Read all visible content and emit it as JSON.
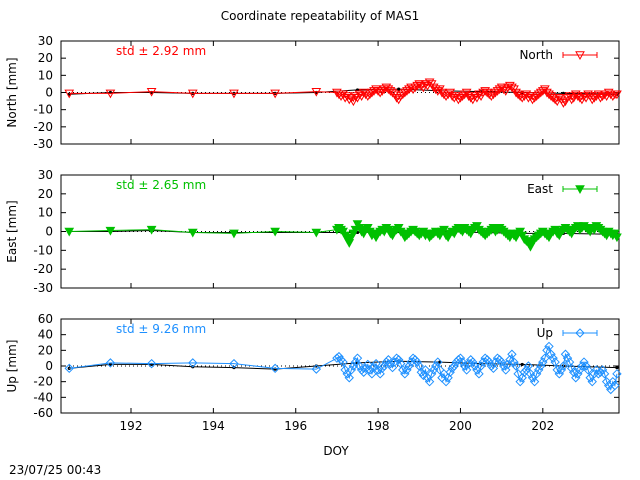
{
  "title": "Coordinate repeatability of MAS1",
  "timestamp": "23/07/25 00:43",
  "xlabel": "DOY",
  "xlim": [
    190.3,
    203.85
  ],
  "xticks": [
    192,
    194,
    196,
    198,
    200,
    202
  ],
  "chart_data": [
    {
      "type": "line",
      "ylabel": "North [mm]",
      "ylim": [
        -30,
        30
      ],
      "yticks": [
        -30,
        -20,
        -10,
        0,
        10,
        20,
        30
      ],
      "std_label": "std ± 2.92 mm",
      "std_color": "#ff0000",
      "legend": "North",
      "legend_position": "top-right",
      "color": "#ff0000",
      "marker": "triangle-down-open",
      "trend": {
        "x": [
          190.5,
          191.5,
          192.5,
          193.5,
          194.5,
          195.5,
          196.5,
          197.5,
          198.5,
          199.5,
          200.5,
          201.5,
          202.5,
          203.8
        ],
        "y": [
          -1,
          0,
          0,
          -0.5,
          -0.5,
          -0.5,
          0,
          1.5,
          2,
          1,
          0.5,
          0,
          -0.5,
          -1
        ]
      },
      "x": [
        190.5,
        191.5,
        192.5,
        193.5,
        194.5,
        195.5,
        196.5,
        197.0,
        197.05,
        197.1,
        197.15,
        197.2,
        197.25,
        197.3,
        197.35,
        197.4,
        197.45,
        197.5,
        197.55,
        197.6,
        197.65,
        197.7,
        197.75,
        197.8,
        197.85,
        197.9,
        197.95,
        198.0,
        198.05,
        198.1,
        198.15,
        198.2,
        198.25,
        198.3,
        198.35,
        198.4,
        198.45,
        198.5,
        198.55,
        198.6,
        198.65,
        198.7,
        198.75,
        198.8,
        198.85,
        198.9,
        198.95,
        199.0,
        199.05,
        199.1,
        199.15,
        199.2,
        199.25,
        199.3,
        199.35,
        199.4,
        199.45,
        199.5,
        199.55,
        199.6,
        199.65,
        199.7,
        199.75,
        199.8,
        199.85,
        199.9,
        199.95,
        200.0,
        200.05,
        200.1,
        200.15,
        200.2,
        200.25,
        200.3,
        200.35,
        200.4,
        200.45,
        200.5,
        200.55,
        200.6,
        200.65,
        200.7,
        200.75,
        200.8,
        200.85,
        200.9,
        200.95,
        201.0,
        201.05,
        201.1,
        201.15,
        201.2,
        201.25,
        201.3,
        201.35,
        201.4,
        201.45,
        201.5,
        201.55,
        201.6,
        201.65,
        201.7,
        201.75,
        201.8,
        201.85,
        201.9,
        201.95,
        202.0,
        202.05,
        202.1,
        202.15,
        202.2,
        202.25,
        202.3,
        202.35,
        202.4,
        202.45,
        202.5,
        202.55,
        202.6,
        202.65,
        202.7,
        202.75,
        202.8,
        202.85,
        202.9,
        202.95,
        203.0,
        203.05,
        203.1,
        203.15,
        203.2,
        203.25,
        203.3,
        203.35,
        203.4,
        203.45,
        203.5,
        203.55,
        203.6,
        203.65,
        203.7,
        203.75,
        203.8
      ],
      "y": [
        -0.5,
        -0.5,
        0.5,
        -0.5,
        -0.5,
        -0.5,
        0.5,
        0,
        -1,
        -2,
        -1,
        -3,
        -2,
        -4,
        -3,
        -5,
        -2,
        -3,
        -1,
        -2,
        0,
        -1,
        -2,
        -1,
        0,
        1,
        2,
        1,
        0,
        1,
        2,
        3,
        2,
        1,
        0,
        -1,
        -3,
        -4,
        -2,
        -1,
        0,
        1,
        2,
        3,
        2,
        3,
        4,
        5,
        4,
        3,
        5,
        4,
        6,
        5,
        3,
        2,
        1,
        2,
        0,
        -1,
        -2,
        -1,
        0,
        -2,
        -3,
        -2,
        -4,
        -3,
        -2,
        -1,
        0,
        -2,
        -3,
        -4,
        -2,
        -3,
        -1,
        -2,
        0,
        1,
        0,
        -1,
        -2,
        -1,
        0,
        1,
        2,
        3,
        2,
        1,
        3,
        4,
        3,
        2,
        0,
        -1,
        -2,
        -3,
        -2,
        -1,
        -3,
        -2,
        -4,
        -3,
        -2,
        -1,
        0,
        1,
        2,
        0,
        -1,
        -2,
        -3,
        -4,
        -5,
        -3,
        -4,
        -6,
        -5,
        -3,
        -2,
        -4,
        -3,
        -1,
        -2,
        -3,
        -4,
        -2,
        -3,
        -1,
        -2,
        -4,
        -3,
        -2,
        -1,
        -3,
        -2,
        -1,
        -2,
        0,
        -1,
        -2,
        -1,
        -1
      ]
    },
    {
      "type": "line",
      "ylabel": "East [mm]",
      "ylim": [
        -30,
        30
      ],
      "yticks": [
        -30,
        -20,
        -10,
        0,
        10,
        20,
        30
      ],
      "std_label": "std ± 2.65 mm",
      "std_color": "#00c000",
      "legend": "East",
      "legend_position": "top-right",
      "color": "#00c000",
      "marker": "triangle-down-filled",
      "trend": {
        "x": [
          190.5,
          191.5,
          192.5,
          193.5,
          194.5,
          195.5,
          196.5,
          197.5,
          198.5,
          199.5,
          200.5,
          201.5,
          202.5,
          203.8
        ],
        "y": [
          0,
          0,
          0.5,
          -0.5,
          -0.5,
          -0.5,
          -0.5,
          -0.5,
          0,
          0,
          -0.5,
          -1,
          -1,
          -1.5
        ]
      },
      "x": [
        190.5,
        191.5,
        192.5,
        193.5,
        194.5,
        195.5,
        196.5,
        197.0,
        197.05,
        197.1,
        197.15,
        197.2,
        197.25,
        197.3,
        197.35,
        197.4,
        197.45,
        197.5,
        197.55,
        197.6,
        197.65,
        197.7,
        197.75,
        197.8,
        197.85,
        197.9,
        197.95,
        198.0,
        198.05,
        198.1,
        198.15,
        198.2,
        198.25,
        198.3,
        198.35,
        198.4,
        198.45,
        198.5,
        198.55,
        198.6,
        198.65,
        198.7,
        198.75,
        198.8,
        198.85,
        198.9,
        198.95,
        199.0,
        199.05,
        199.1,
        199.15,
        199.2,
        199.25,
        199.3,
        199.35,
        199.4,
        199.45,
        199.5,
        199.55,
        199.6,
        199.65,
        199.7,
        199.75,
        199.8,
        199.85,
        199.9,
        199.95,
        200.0,
        200.05,
        200.1,
        200.15,
        200.2,
        200.25,
        200.3,
        200.35,
        200.4,
        200.45,
        200.5,
        200.55,
        200.6,
        200.65,
        200.7,
        200.75,
        200.8,
        200.85,
        200.9,
        200.95,
        201.0,
        201.05,
        201.1,
        201.15,
        201.2,
        201.25,
        201.3,
        201.35,
        201.4,
        201.45,
        201.5,
        201.55,
        201.6,
        201.65,
        201.7,
        201.75,
        201.8,
        201.85,
        201.9,
        201.95,
        202.0,
        202.05,
        202.1,
        202.15,
        202.2,
        202.25,
        202.3,
        202.35,
        202.4,
        202.45,
        202.5,
        202.55,
        202.6,
        202.65,
        202.7,
        202.75,
        202.8,
        202.85,
        202.9,
        202.95,
        203.0,
        203.05,
        203.1,
        203.15,
        203.2,
        203.25,
        203.3,
        203.35,
        203.4,
        203.45,
        203.5,
        203.55,
        203.6,
        203.65,
        203.7,
        203.75,
        203.8
      ],
      "y": [
        0,
        0.5,
        1,
        -0.5,
        -1,
        0,
        -0.5,
        1,
        2,
        1,
        0,
        -2,
        -4,
        -6,
        -3,
        -1,
        1,
        4,
        2,
        0,
        -1,
        1,
        2,
        0,
        -2,
        -1,
        -3,
        -1,
        0,
        1,
        0,
        2,
        1,
        -1,
        -2,
        0,
        1,
        2,
        0,
        -1,
        -3,
        -2,
        -1,
        0,
        1,
        0,
        -1,
        -2,
        -1,
        0,
        -2,
        -1,
        -3,
        -2,
        -1,
        0,
        -1,
        -2,
        0,
        1,
        -2,
        -3,
        -1,
        0,
        -1,
        1,
        2,
        1,
        0,
        2,
        1,
        0,
        -1,
        1,
        2,
        3,
        1,
        0,
        -1,
        -2,
        -1,
        0,
        1,
        2,
        0,
        1,
        2,
        1,
        0,
        -1,
        -2,
        -3,
        -1,
        -2,
        -3,
        -1,
        0,
        -2,
        -4,
        -5,
        -6,
        -8,
        -5,
        -4,
        -3,
        -2,
        -1,
        0,
        -1,
        -2,
        -3,
        -1,
        0,
        1,
        -1,
        -2,
        0,
        1,
        2,
        1,
        0,
        -1,
        1,
        2,
        3,
        1,
        2,
        3,
        2,
        1,
        0,
        2,
        1,
        3,
        2,
        1,
        0,
        -1,
        -2,
        0,
        -1,
        -2,
        -1,
        -3
      ]
    },
    {
      "type": "line",
      "ylabel": "Up [mm]",
      "ylim": [
        -60,
        60
      ],
      "yticks": [
        -60,
        -40,
        -20,
        0,
        20,
        40,
        60
      ],
      "std_label": "std ± 9.26 mm",
      "std_color": "#1e90ff",
      "legend": "Up",
      "legend_position": "top-right",
      "color": "#1e90ff",
      "marker": "diamond-open",
      "trend": {
        "x": [
          190.5,
          191.5,
          192.5,
          193.5,
          194.5,
          195.5,
          196.5,
          197.5,
          198.5,
          199.5,
          200.5,
          201.5,
          202.5,
          203.8
        ],
        "y": [
          -3,
          2,
          2,
          -1,
          -2,
          -4,
          0,
          4,
          6,
          5,
          3,
          2,
          0,
          -2
        ]
      },
      "x": [
        190.5,
        191.5,
        192.5,
        193.5,
        194.5,
        195.5,
        196.5,
        197.0,
        197.05,
        197.1,
        197.15,
        197.2,
        197.25,
        197.3,
        197.35,
        197.4,
        197.45,
        197.5,
        197.55,
        197.6,
        197.65,
        197.7,
        197.75,
        197.8,
        197.85,
        197.9,
        197.95,
        198.0,
        198.05,
        198.1,
        198.15,
        198.2,
        198.25,
        198.3,
        198.35,
        198.4,
        198.45,
        198.5,
        198.55,
        198.6,
        198.65,
        198.7,
        198.75,
        198.8,
        198.85,
        198.9,
        198.95,
        199.0,
        199.05,
        199.1,
        199.15,
        199.2,
        199.25,
        199.3,
        199.35,
        199.4,
        199.45,
        199.5,
        199.55,
        199.6,
        199.65,
        199.7,
        199.75,
        199.8,
        199.85,
        199.9,
        199.95,
        200.0,
        200.05,
        200.1,
        200.15,
        200.2,
        200.25,
        200.3,
        200.35,
        200.4,
        200.45,
        200.5,
        200.55,
        200.6,
        200.65,
        200.7,
        200.75,
        200.8,
        200.85,
        200.9,
        200.95,
        201.0,
        201.05,
        201.1,
        201.15,
        201.2,
        201.25,
        201.3,
        201.35,
        201.4,
        201.45,
        201.5,
        201.55,
        201.6,
        201.65,
        201.7,
        201.75,
        201.8,
        201.85,
        201.9,
        201.95,
        202.0,
        202.05,
        202.1,
        202.15,
        202.2,
        202.25,
        202.3,
        202.35,
        202.4,
        202.45,
        202.5,
        202.55,
        202.6,
        202.65,
        202.7,
        202.75,
        202.8,
        202.85,
        202.9,
        202.95,
        203.0,
        203.05,
        203.1,
        203.15,
        203.2,
        203.25,
        203.3,
        203.35,
        203.4,
        203.45,
        203.5,
        203.55,
        203.6,
        203.65,
        203.7,
        203.75,
        203.8
      ],
      "y": [
        -3,
        4,
        3,
        4,
        3,
        -3,
        -4,
        10,
        12,
        8,
        5,
        -5,
        -10,
        -15,
        -5,
        0,
        5,
        10,
        0,
        -5,
        -8,
        -3,
        2,
        -5,
        -10,
        -2,
        3,
        -5,
        -10,
        -3,
        0,
        5,
        8,
        3,
        -2,
        5,
        10,
        8,
        3,
        -5,
        -10,
        -5,
        0,
        5,
        10,
        8,
        5,
        0,
        -8,
        -12,
        -5,
        -15,
        -20,
        -10,
        -5,
        0,
        5,
        -5,
        -15,
        -10,
        -20,
        -15,
        -8,
        -3,
        0,
        5,
        8,
        10,
        5,
        0,
        -5,
        3,
        8,
        5,
        0,
        -5,
        -10,
        0,
        5,
        10,
        8,
        5,
        0,
        -3,
        5,
        10,
        8,
        5,
        0,
        -5,
        2,
        8,
        15,
        5,
        0,
        -10,
        -20,
        -15,
        -8,
        -5,
        0,
        -10,
        -15,
        -20,
        -10,
        -5,
        0,
        5,
        10,
        20,
        25,
        15,
        10,
        5,
        -5,
        -10,
        -5,
        0,
        15,
        10,
        5,
        -3,
        -8,
        -15,
        -10,
        -5,
        0,
        5,
        0,
        -5,
        -15,
        -20,
        -10,
        -5,
        -10,
        -8,
        -5,
        -10,
        -20,
        -25,
        -30,
        -20,
        -25,
        -10
      ]
    }
  ]
}
